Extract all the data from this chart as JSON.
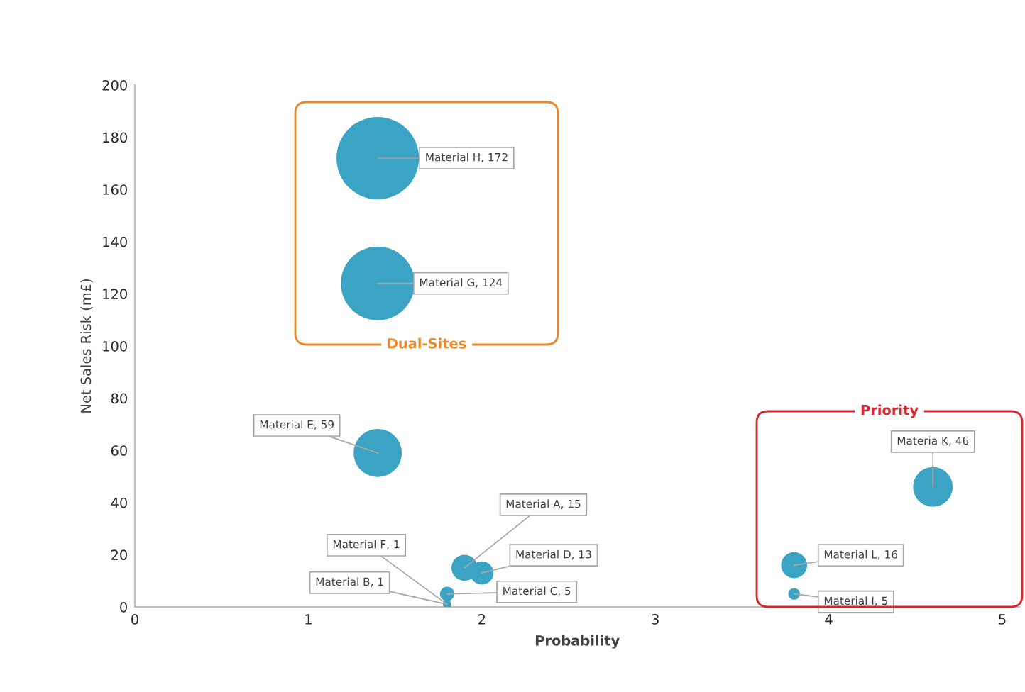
{
  "chart_data": {
    "type": "bubble",
    "xlabel": "Probability",
    "ylabel": "Net Sales Risk (m£)",
    "x": [
      1.4,
      1.4,
      1.4,
      1.9,
      2.0,
      1.8,
      1.8,
      1.8,
      4.6,
      3.8,
      3.8
    ],
    "values": [
      172,
      124,
      59,
      15,
      13,
      5,
      1,
      1,
      46,
      16,
      5
    ],
    "sizes": [
      1,
      0.8,
      0.34,
      0.1,
      0.08,
      0.03,
      0.01,
      0.01,
      0.23,
      0.1,
      0.02
    ],
    "value_labels": [
      "Material H, 172",
      "Material G, 124",
      "Material E, 59",
      "Material A, 15",
      "Material D, 13",
      "Material C, 5",
      "Material F, 1",
      "Material B, 1",
      "Materia K, 46",
      "Material L, 16",
      "Material I, 5"
    ],
    "color": "#3ba3c3",
    "xlim": [
      0,
      5.1
    ],
    "xticks": [
      0,
      1,
      2,
      3,
      4,
      5
    ],
    "ylim": [
      0,
      200
    ],
    "yticks": [
      0,
      20,
      40,
      60,
      80,
      100,
      120,
      140,
      160,
      180,
      200
    ],
    "grid": false,
    "annotations": [
      "Dual-Sites",
      "Priority"
    ]
  }
}
